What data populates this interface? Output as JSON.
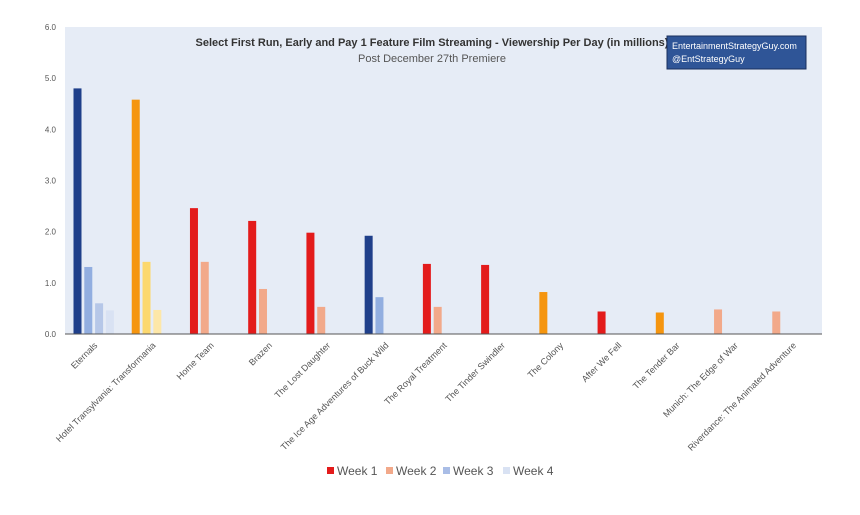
{
  "chart_data": {
    "type": "bar",
    "title": "Select First Run, Early and Pay 1 Feature Film Streaming - Viewership Per Day (in millions)",
    "subtitle": "Post December 27th Premiere",
    "ylim": [
      0,
      6
    ],
    "yticks": [
      "0.0",
      "1.0",
      "2.0",
      "3.0",
      "4.0",
      "5.0",
      "6.0"
    ],
    "grid": false,
    "legend_position": "bottom",
    "categories": [
      "Eternals",
      "Hotel Transylvania: Transformania",
      "Home Team",
      "Brazen",
      "The Lost Daughter",
      "The Ice Age Adventures of Buck Wild",
      "The Royal Treatment",
      "The Tinder Swindler",
      "The Colony",
      "After We Fell",
      "The Tender Bar",
      "Munich: The Edge of War",
      "Riverdance: The Animated Adventure"
    ],
    "series": [
      {
        "name": "Week 1",
        "values": [
          4.8,
          4.58,
          2.46,
          2.21,
          1.98,
          1.92,
          1.37,
          1.35,
          0.82,
          0.44,
          0.42,
          0.48,
          0.44
        ]
      },
      {
        "name": "Week 2",
        "values": [
          1.31,
          1.41,
          1.41,
          0.88,
          0.53,
          0.72,
          0.53,
          null,
          null,
          null,
          null,
          null,
          null
        ]
      },
      {
        "name": "Week 3",
        "values": [
          0.6,
          0.47,
          null,
          null,
          null,
          null,
          null,
          null,
          null,
          null,
          null,
          null,
          null
        ]
      },
      {
        "name": "Week 4",
        "values": [
          0.46,
          null,
          null,
          null,
          null,
          null,
          null,
          null,
          null,
          null,
          null,
          null,
          null
        ]
      }
    ],
    "bar_colors": [
      [
        "#1f3f8a",
        "#92aee0",
        "#b6c7e8",
        "#d9e2f3"
      ],
      [
        "#f5950f",
        "#fcd86e",
        "#fde7a8",
        "#fef2cc"
      ],
      [
        "#e31b1b",
        "#f2a98a",
        "#f6c7b2",
        "#fadfd2"
      ],
      [
        "#e31b1b",
        "#f2a98a",
        "#f6c7b2",
        "#fadfd2"
      ],
      [
        "#e31b1b",
        "#f2a98a",
        "#f6c7b2",
        "#fadfd2"
      ],
      [
        "#1f3f8a",
        "#92aee0",
        "#b6c7e8",
        "#d9e2f3"
      ],
      [
        "#e31b1b",
        "#f2a98a",
        "#f6c7b2",
        "#fadfd2"
      ],
      [
        "#e31b1b",
        "#f2a98a",
        "#f6c7b2",
        "#fadfd2"
      ],
      [
        "#f5950f",
        "#fcd86e",
        "#fde7a8",
        "#fef2cc"
      ],
      [
        "#e31b1b",
        "#f2a98a",
        "#f6c7b2",
        "#fadfd2"
      ],
      [
        "#f5950f",
        "#fcd86e",
        "#fde7a8",
        "#fef2cc"
      ],
      [
        "#f2a98a",
        "#f2a98a",
        "#f6c7b2",
        "#fadfd2"
      ],
      [
        "#f2a98a",
        "#f2a98a",
        "#f6c7b2",
        "#fadfd2"
      ]
    ],
    "legend": [
      {
        "label": "Week 1",
        "color": "#e31b1b"
      },
      {
        "label": "Week 2",
        "color": "#f2a98a"
      },
      {
        "label": "Week 3",
        "color": "#a9bde6"
      },
      {
        "label": "Week 4",
        "color": "#d9e2f3"
      }
    ],
    "plot_background": "#e6ecf6"
  },
  "brand": {
    "line1": "EntertainmentStrategyGuy.com",
    "line2": "@EntStrategyGuy",
    "color": "#2f5597"
  }
}
